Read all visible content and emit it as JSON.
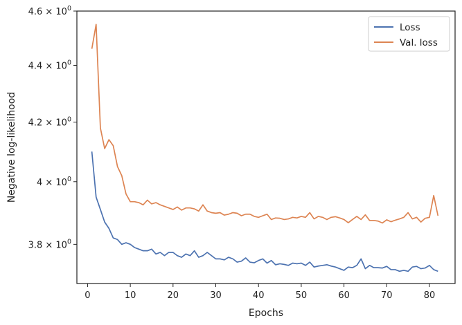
{
  "chart_data": {
    "type": "line",
    "xlabel": "Epochs",
    "ylabel": "Negative log-likelihood",
    "yscale": "log",
    "xlim": [
      -2.5,
      86
    ],
    "ylim": [
      3.68,
      4.6
    ],
    "xticks": [
      0,
      10,
      20,
      30,
      40,
      50,
      60,
      70,
      80
    ],
    "yticks": [
      {
        "value": 3.8,
        "mantissa": "3.8",
        "exponent": "0"
      },
      {
        "value": 4.0,
        "mantissa": "4",
        "exponent": "0"
      },
      {
        "value": 4.2,
        "mantissa": "4.2",
        "exponent": "0"
      },
      {
        "value": 4.4,
        "mantissa": "4.4",
        "exponent": "0"
      },
      {
        "value": 4.6,
        "mantissa": "4.6",
        "exponent": "0"
      }
    ],
    "legend_position": "top-right",
    "series": [
      {
        "name": "Loss",
        "color": "#4c72b0",
        "x": [
          1,
          2,
          3,
          4,
          5,
          6,
          7,
          8,
          9,
          10,
          11,
          12,
          13,
          14,
          15,
          16,
          17,
          18,
          19,
          20,
          21,
          22,
          23,
          24,
          25,
          26,
          27,
          28,
          29,
          30,
          31,
          32,
          33,
          34,
          35,
          36,
          37,
          38,
          39,
          40,
          41,
          42,
          43,
          44,
          45,
          46,
          47,
          48,
          49,
          50,
          51,
          52,
          53,
          54,
          55,
          56,
          57,
          58,
          59,
          60,
          61,
          62,
          63,
          64,
          65,
          66,
          67,
          68,
          69,
          70,
          71,
          72,
          73,
          74,
          75,
          76,
          77,
          78,
          79,
          80,
          81,
          82
        ],
        "values": [
          4.1,
          3.95,
          3.91,
          3.87,
          3.85,
          3.82,
          3.815,
          3.8,
          3.805,
          3.8,
          3.79,
          3.785,
          3.78,
          3.78,
          3.785,
          3.77,
          3.775,
          3.765,
          3.775,
          3.775,
          3.765,
          3.76,
          3.77,
          3.765,
          3.78,
          3.76,
          3.765,
          3.775,
          3.765,
          3.755,
          3.755,
          3.752,
          3.76,
          3.755,
          3.745,
          3.748,
          3.758,
          3.745,
          3.743,
          3.75,
          3.755,
          3.742,
          3.75,
          3.737,
          3.74,
          3.738,
          3.735,
          3.742,
          3.74,
          3.742,
          3.735,
          3.745,
          3.73,
          3.733,
          3.735,
          3.737,
          3.733,
          3.73,
          3.725,
          3.72,
          3.73,
          3.728,
          3.735,
          3.755,
          3.725,
          3.735,
          3.728,
          3.728,
          3.727,
          3.732,
          3.722,
          3.722,
          3.717,
          3.72,
          3.717,
          3.73,
          3.732,
          3.725,
          3.727,
          3.735,
          3.722,
          3.717
        ]
      },
      {
        "name": "Val. loss",
        "color": "#dd8452",
        "x": [
          1,
          2,
          3,
          4,
          5,
          6,
          7,
          8,
          9,
          10,
          11,
          12,
          13,
          14,
          15,
          16,
          17,
          18,
          19,
          20,
          21,
          22,
          23,
          24,
          25,
          26,
          27,
          28,
          29,
          30,
          31,
          32,
          33,
          34,
          35,
          36,
          37,
          38,
          39,
          40,
          41,
          42,
          43,
          44,
          45,
          46,
          47,
          48,
          49,
          50,
          51,
          52,
          53,
          54,
          55,
          56,
          57,
          58,
          59,
          60,
          61,
          62,
          63,
          64,
          65,
          66,
          67,
          68,
          69,
          70,
          71,
          72,
          73,
          74,
          75,
          76,
          77,
          78,
          79,
          80,
          81,
          82
        ],
        "values": [
          4.46,
          4.55,
          4.18,
          4.11,
          4.14,
          4.12,
          4.05,
          4.02,
          3.96,
          3.935,
          3.935,
          3.932,
          3.925,
          3.94,
          3.928,
          3.932,
          3.925,
          3.92,
          3.915,
          3.91,
          3.918,
          3.908,
          3.915,
          3.915,
          3.912,
          3.905,
          3.925,
          3.905,
          3.9,
          3.898,
          3.9,
          3.892,
          3.895,
          3.9,
          3.898,
          3.89,
          3.895,
          3.895,
          3.888,
          3.885,
          3.89,
          3.895,
          3.878,
          3.883,
          3.882,
          3.878,
          3.88,
          3.885,
          3.883,
          3.888,
          3.885,
          3.9,
          3.88,
          3.888,
          3.885,
          3.878,
          3.885,
          3.887,
          3.883,
          3.878,
          3.868,
          3.878,
          3.888,
          3.878,
          3.893,
          3.875,
          3.875,
          3.873,
          3.867,
          3.877,
          3.871,
          3.876,
          3.88,
          3.885,
          3.9,
          3.88,
          3.885,
          3.87,
          3.882,
          3.885,
          3.955,
          3.89
        ]
      }
    ]
  }
}
